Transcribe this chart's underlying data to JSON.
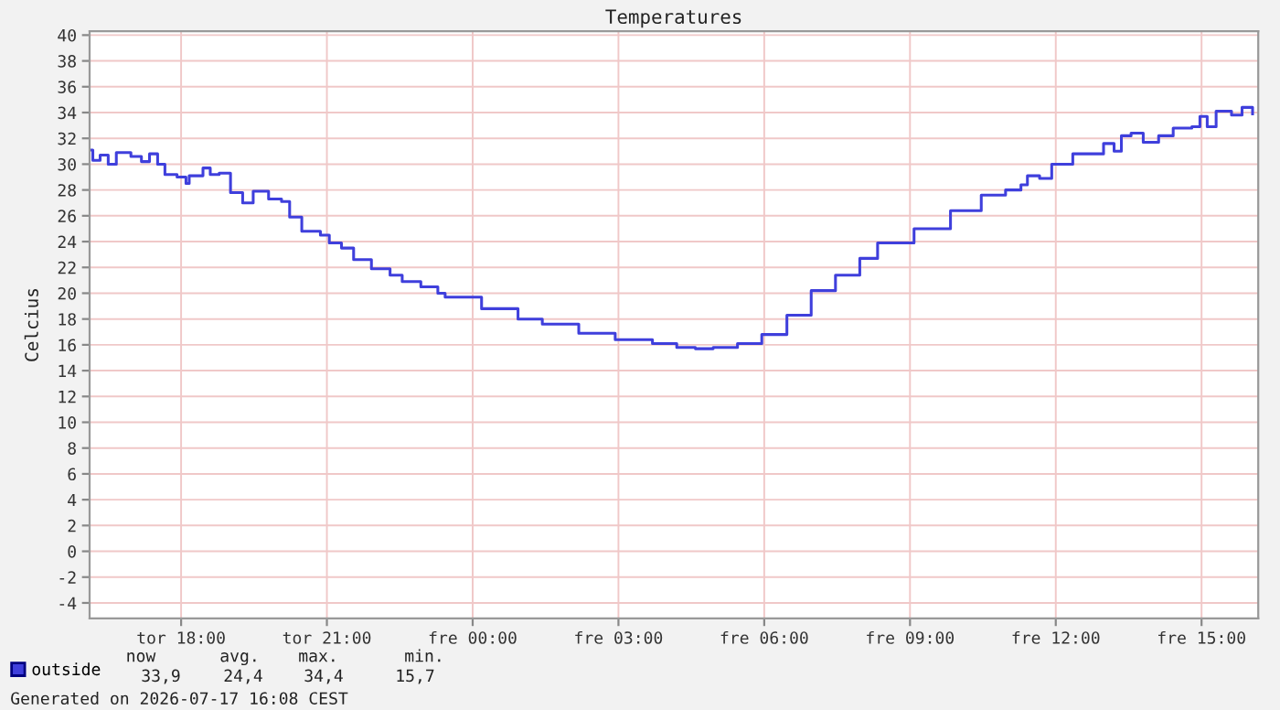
{
  "chart_data": {
    "type": "step",
    "title": "Temperatures",
    "ylabel": "Celcius",
    "xlim": [
      "2026-07-16T16:07",
      "2026-07-17T16:10"
    ],
    "ylim": [
      -5.2,
      40.3
    ],
    "xticks": [
      {
        "value": "2026-07-16T18:00",
        "label": "tor 18:00"
      },
      {
        "value": "2026-07-16T21:00",
        "label": "tor 21:00"
      },
      {
        "value": "2026-07-17T00:00",
        "label": "fre 00:00"
      },
      {
        "value": "2026-07-17T03:00",
        "label": "fre 03:00"
      },
      {
        "value": "2026-07-17T06:00",
        "label": "fre 06:00"
      },
      {
        "value": "2026-07-17T09:00",
        "label": "fre 09:00"
      },
      {
        "value": "2026-07-17T12:00",
        "label": "fre 12:00"
      },
      {
        "value": "2026-07-17T15:00",
        "label": "fre 15:00"
      }
    ],
    "yticks": [
      -4,
      -2,
      0,
      2,
      4,
      6,
      8,
      10,
      12,
      14,
      16,
      18,
      20,
      22,
      24,
      26,
      28,
      30,
      32,
      34,
      36,
      38,
      40
    ],
    "grid": true,
    "legend": "bottom left",
    "series": [
      {
        "name": "outside",
        "color": "#3f3fdc",
        "x": [
          "2026-07-16T16:08",
          "2026-07-16T16:11",
          "2026-07-16T16:20",
          "2026-07-16T16:30",
          "2026-07-16T16:40",
          "2026-07-16T16:58",
          "2026-07-16T17:11",
          "2026-07-16T17:21",
          "2026-07-16T17:31",
          "2026-07-16T17:40",
          "2026-07-16T17:55",
          "2026-07-16T18:06",
          "2026-07-16T18:10",
          "2026-07-16T18:27",
          "2026-07-16T18:36",
          "2026-07-16T18:47",
          "2026-07-16T19:01",
          "2026-07-16T19:16",
          "2026-07-16T19:29",
          "2026-07-16T19:48",
          "2026-07-16T20:04",
          "2026-07-16T20:14",
          "2026-07-16T20:29",
          "2026-07-16T20:52",
          "2026-07-16T21:03",
          "2026-07-16T21:18",
          "2026-07-16T21:33",
          "2026-07-16T21:55",
          "2026-07-16T22:18",
          "2026-07-16T22:33",
          "2026-07-16T22:56",
          "2026-07-16T23:17",
          "2026-07-16T23:26",
          "2026-07-17T00:11",
          "2026-07-17T00:56",
          "2026-07-17T01:26",
          "2026-07-17T02:11",
          "2026-07-17T02:56",
          "2026-07-17T03:42",
          "2026-07-17T04:12",
          "2026-07-17T04:35",
          "2026-07-17T04:57",
          "2026-07-17T05:27",
          "2026-07-17T05:57",
          "2026-07-17T06:28",
          "2026-07-17T06:58",
          "2026-07-17T07:28",
          "2026-07-17T07:58",
          "2026-07-17T08:20",
          "2026-07-17T09:05",
          "2026-07-17T09:50",
          "2026-07-17T10:28",
          "2026-07-17T10:58",
          "2026-07-17T11:17",
          "2026-07-17T11:25",
          "2026-07-17T11:40",
          "2026-07-17T11:55",
          "2026-07-17T12:21",
          "2026-07-17T12:59",
          "2026-07-17T13:12",
          "2026-07-17T13:21",
          "2026-07-17T13:33",
          "2026-07-17T13:48",
          "2026-07-17T14:07",
          "2026-07-17T14:25",
          "2026-07-17T14:48",
          "2026-07-17T14:58",
          "2026-07-17T15:07",
          "2026-07-17T15:18",
          "2026-07-17T15:37",
          "2026-07-17T15:50",
          "2026-07-17T16:03"
        ],
        "values": [
          31.1,
          30.3,
          30.7,
          30.0,
          30.9,
          30.6,
          30.2,
          30.8,
          30.0,
          29.2,
          29.0,
          28.5,
          29.1,
          29.7,
          29.2,
          29.3,
          27.8,
          27.0,
          27.9,
          27.3,
          27.1,
          25.9,
          24.8,
          24.5,
          23.9,
          23.5,
          22.6,
          21.9,
          21.4,
          20.9,
          20.5,
          20.0,
          19.7,
          18.8,
          18.0,
          17.6,
          16.9,
          16.4,
          16.1,
          15.8,
          15.7,
          15.8,
          16.1,
          16.8,
          18.3,
          20.2,
          21.4,
          22.7,
          23.9,
          25.0,
          26.4,
          27.6,
          28.0,
          28.4,
          29.1,
          28.9,
          30.0,
          30.8,
          31.6,
          31.0,
          32.2,
          32.4,
          31.7,
          32.2,
          32.8,
          32.9,
          33.7,
          32.9,
          34.1,
          33.8,
          34.4,
          33.9
        ]
      }
    ],
    "annotations": [
      "now",
      "avg.",
      "max.",
      "min.",
      "33,9",
      "24,4",
      "34,4",
      "15,7",
      "Generated on 2026-07-17 16:08 CEST"
    ]
  }
}
